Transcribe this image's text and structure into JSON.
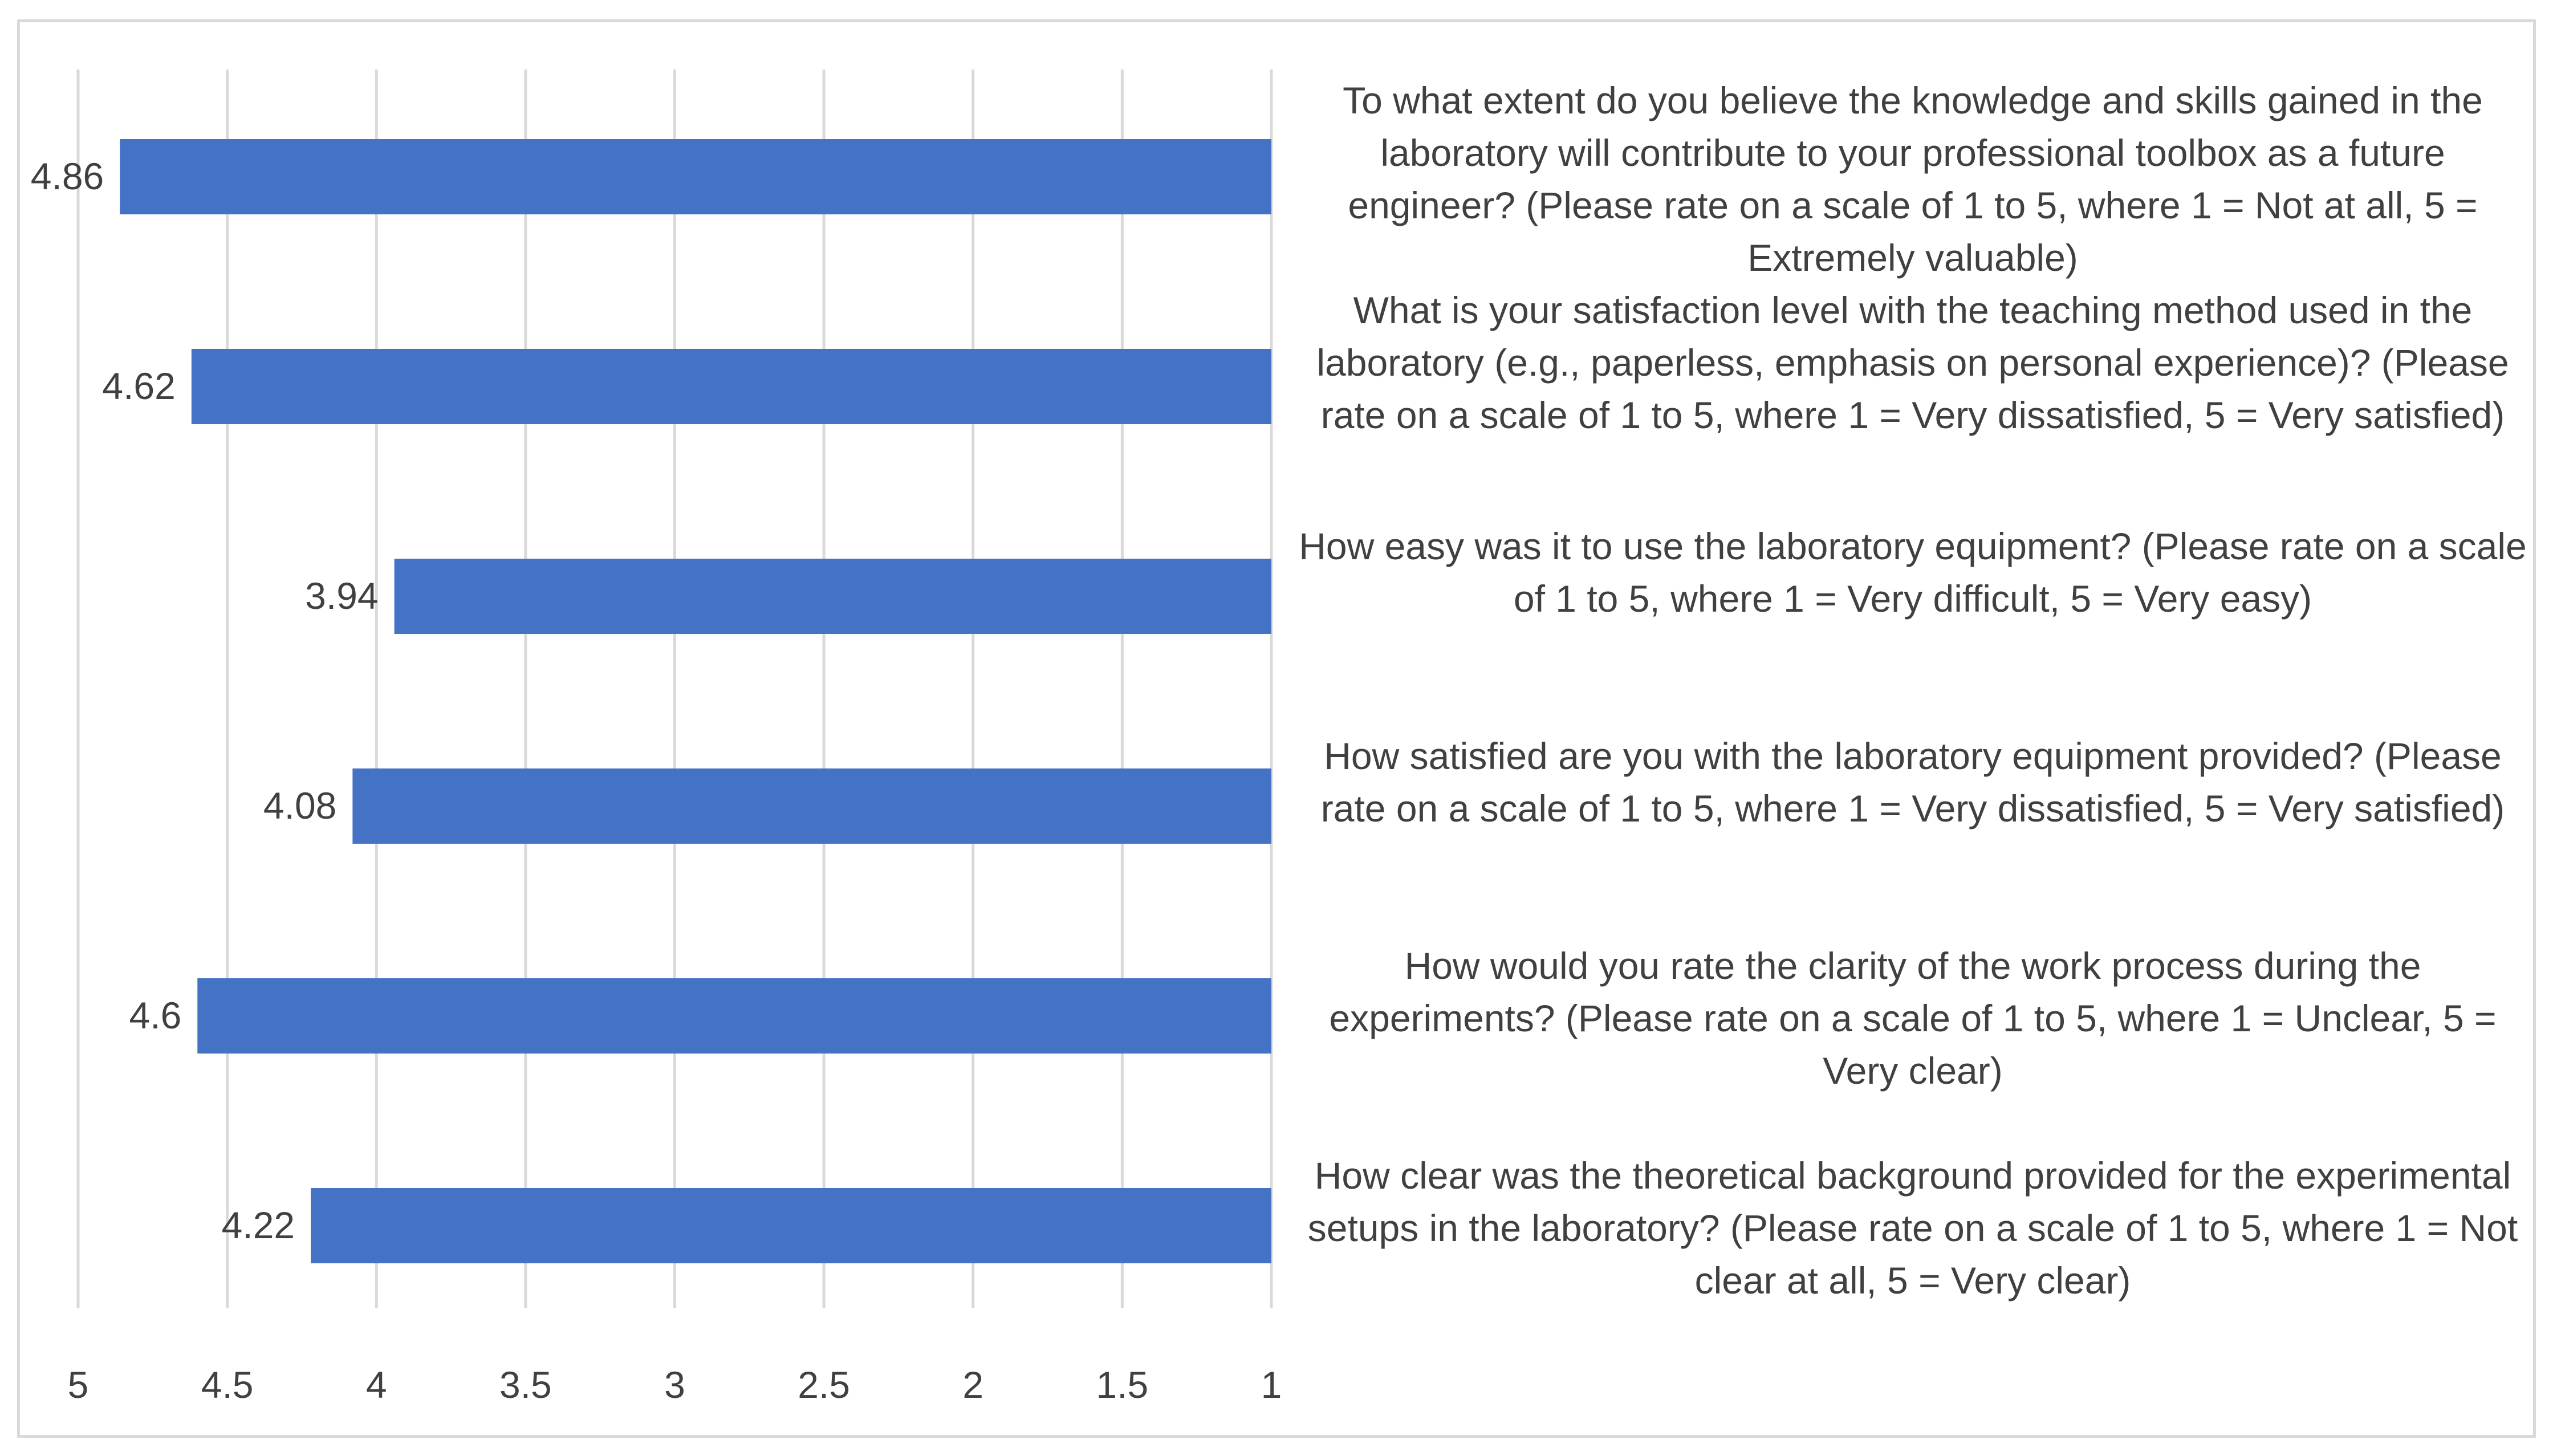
{
  "chart_data": {
    "type": "bar",
    "orientation": "horizontal",
    "x_reversed": true,
    "xlim": [
      1,
      5
    ],
    "x_ticks": [
      "1",
      "1.5",
      "2",
      "2.5",
      "3",
      "3.5",
      "4",
      "4.5",
      "5"
    ],
    "grid": "vertical",
    "color": "#4472c4",
    "categories": [
      "To what extent do you believe the knowledge and skills gained in the laboratory will contribute to your professional toolbox as a future engineer? (Please rate on a scale of 1 to 5, where 1 = Not at all, 5 = Extremely valuable)",
      "What is your satisfaction level with the teaching method used in the laboratory (e.g., paperless, emphasis on personal experience)? (Please rate on a scale of 1 to 5, where 1 = Very dissatisfied, 5 = Very satisfied)",
      "How easy was it to use the laboratory equipment? (Please rate on a scale of 1 to 5, where 1 = Very difficult, 5 = Very easy)",
      "How satisfied are you with the laboratory equipment provided? (Please rate on a scale of 1 to 5, where 1 = Very dissatisfied, 5 = Very satisfied)",
      "How would you rate the clarity of the work process during the experiments? (Please rate on a scale of 1 to 5, where 1 = Unclear, 5 = Very clear)",
      "How clear was the theoretical background provided for the experimental setups in the laboratory? (Please rate on a scale of 1 to 5, where 1 = Not clear at all, 5 = Very clear)"
    ],
    "values": [
      4.86,
      4.62,
      3.94,
      4.08,
      4.6,
      4.22
    ],
    "value_labels": [
      "4.86",
      "4.62",
      "3.94",
      "4.08",
      "4.6",
      "4.22"
    ]
  }
}
